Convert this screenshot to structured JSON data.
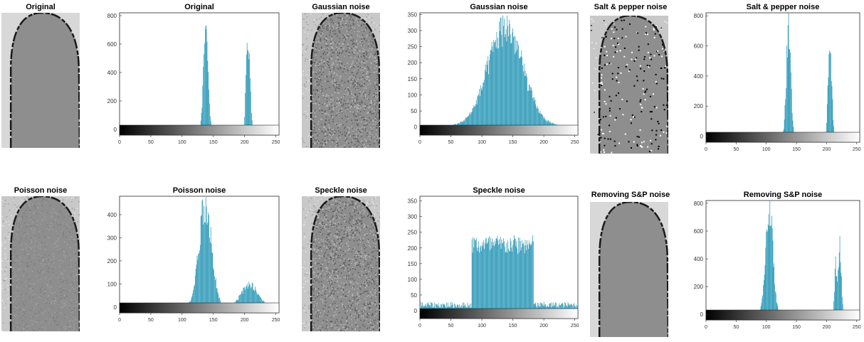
{
  "colors": {
    "bar": "#1f93b3",
    "bar_edge": "#0e6f8c",
    "axis": "#262626"
  },
  "images": [
    {
      "title": "Original",
      "texture": "smooth"
    },
    {
      "title": "Gaussian noise",
      "texture": "gaussian"
    },
    {
      "title": "Salt & pepper noise",
      "texture": "saltpepper"
    },
    {
      "title": "Poisson noise",
      "texture": "poisson"
    },
    {
      "title": "Speckle noise",
      "texture": "speckle"
    },
    {
      "title": "Removing S&P noise",
      "texture": "smooth"
    }
  ],
  "chart_data": [
    {
      "type": "bar",
      "title": "Original",
      "xlim": [
        0,
        255
      ],
      "ylim": [
        -40,
        820
      ],
      "xticks": [
        0,
        50,
        100,
        150,
        200,
        250
      ],
      "yticks": [
        0,
        200,
        400,
        600,
        800
      ],
      "colorbar": "grayscale",
      "peaks": [
        {
          "center": 138,
          "sigma": 3.5,
          "height": 820
        },
        {
          "center": 203,
          "sigma": 1.8,
          "height": 380
        },
        {
          "center": 207,
          "sigma": 2.5,
          "height": 540
        }
      ],
      "baseline": 4
    },
    {
      "type": "bar",
      "title": "Gaussian noise",
      "xlim": [
        0,
        255
      ],
      "ylim": [
        -25,
        355
      ],
      "xticks": [
        0,
        50,
        100,
        150,
        200,
        250
      ],
      "yticks": [
        0,
        50,
        100,
        150,
        200,
        250,
        300,
        350
      ],
      "colorbar": "grayscale",
      "peaks": [
        {
          "center": 138,
          "sigma": 28,
          "height": 330
        }
      ],
      "baseline": 4
    },
    {
      "type": "bar",
      "title": "Salt & pepper noise",
      "xlim": [
        0,
        255
      ],
      "ylim": [
        -40,
        820
      ],
      "xticks": [
        0,
        50,
        100,
        150,
        200,
        250
      ],
      "yticks": [
        0,
        200,
        400,
        600,
        800
      ],
      "colorbar": "grayscale",
      "peaks": [
        {
          "center": 137,
          "sigma": 3.5,
          "height": 800
        },
        {
          "center": 203,
          "sigma": 1.8,
          "height": 350
        },
        {
          "center": 207,
          "sigma": 2.5,
          "height": 490
        }
      ],
      "baseline": 3
    },
    {
      "type": "bar",
      "title": "Poisson noise",
      "xlim": [
        0,
        255
      ],
      "ylim": [
        -25,
        480
      ],
      "xticks": [
        0,
        50,
        100,
        150,
        200,
        250
      ],
      "yticks": [
        0,
        100,
        200,
        300,
        400
      ],
      "colorbar": "grayscale",
      "peaks": [
        {
          "center": 137,
          "sigma": 10,
          "height": 480
        },
        {
          "center": 208,
          "sigma": 13,
          "height": 100
        }
      ],
      "baseline": 4
    },
    {
      "type": "bar",
      "title": "Speckle noise",
      "xlim": [
        0,
        255
      ],
      "ylim": [
        -25,
        365
      ],
      "xticks": [
        0,
        50,
        100,
        150,
        200,
        250
      ],
      "yticks": [
        0,
        50,
        100,
        150,
        200,
        250,
        300,
        350
      ],
      "colorbar": "grayscale",
      "plateau": {
        "start": 84,
        "end": 183,
        "height": 210
      },
      "baseline": 20
    },
    {
      "type": "bar",
      "title": "Removing S&P noise",
      "xlim": [
        0,
        255
      ],
      "ylim": [
        -40,
        820
      ],
      "xticks": [
        0,
        50,
        100,
        150,
        200,
        250
      ],
      "yticks": [
        0,
        200,
        400,
        600,
        800
      ],
      "colorbar": "grayscale",
      "peaks": [
        {
          "center": 105,
          "sigma": 6,
          "height": 820
        },
        {
          "center": 215,
          "sigma": 1.8,
          "height": 380
        },
        {
          "center": 222,
          "sigma": 2.5,
          "height": 540
        }
      ],
      "baseline": 2
    }
  ]
}
